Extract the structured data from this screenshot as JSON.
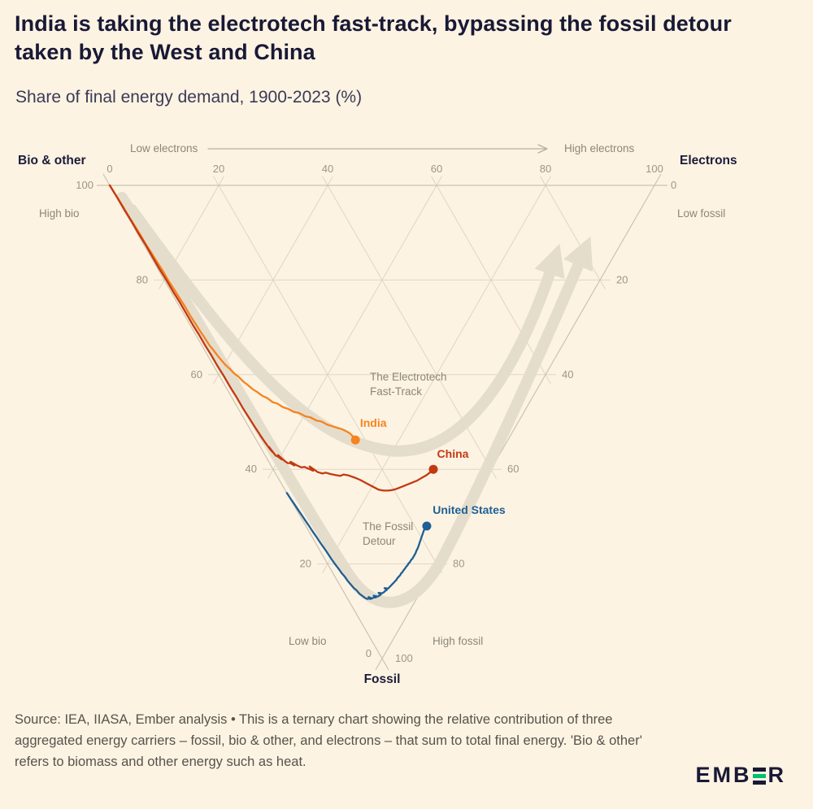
{
  "page": {
    "title": "India is taking the electrotech fast-track, bypassing the fossil detour taken by the West and China",
    "subtitle": "Share of final energy demand, 1900-2023 (%)",
    "source_note": "Source: IEA, IIASA, Ember analysis • This is a ternary chart showing the relative contribution of three aggregated energy carriers – fossil, bio & other, and electrons – that sum to total final energy. 'Bio & other' refers to biomass and other energy such as heat.",
    "logo": {
      "text_before": "EMB",
      "text_after": "R",
      "accent_green": "#00BF6E"
    },
    "colors": {
      "background": "#FDF3E3",
      "title": "#191936",
      "source_text": "#56534B"
    }
  },
  "chart_data": {
    "type": "line",
    "subtype": "ternary-trajectory",
    "unit": "%",
    "period": "1900-2023",
    "point_format": "[electrons, bio_other, fossil] as % of final energy demand, ordered 1900 to 2023",
    "axes": {
      "top": {
        "name": "Electrons",
        "direction_low": "Low electrons",
        "direction_high": "High electrons",
        "ticks": [
          0,
          20,
          40,
          60,
          80,
          100
        ]
      },
      "left": {
        "name": "Bio & other",
        "direction_high": "High bio",
        "direction_low": "Low bio",
        "ticks": [
          100,
          80,
          60,
          40,
          20,
          0
        ]
      },
      "right": {
        "name": "Fossil",
        "direction_low": "Low fossil",
        "direction_high": "High fossil",
        "ticks": [
          0,
          20,
          40,
          60,
          80,
          100
        ]
      }
    },
    "grid": {
      "show": true,
      "interval": 20
    },
    "annotations": [
      {
        "id": "fast-track",
        "lines": [
          "The Electrotech",
          "Fast-Track"
        ]
      },
      {
        "id": "fossil-detour",
        "lines": [
          "The Fossil",
          "Detour"
        ]
      }
    ],
    "series": [
      {
        "name": "India",
        "color": "#F5831F",
        "label_offset": [
          22,
          -16
        ],
        "points": [
          [
            0,
            100,
            0
          ],
          [
            0.1,
            97.5,
            2.4
          ],
          [
            0.2,
            95.1,
            4.7
          ],
          [
            0.2,
            93.4,
            6.4
          ],
          [
            0.3,
            91,
            8.7
          ],
          [
            0.4,
            89.4,
            10.2
          ],
          [
            0.4,
            87,
            12.6
          ],
          [
            0.5,
            85.5,
            14
          ],
          [
            0.6,
            83.1,
            16.3
          ],
          [
            0.7,
            81.6,
            17.7
          ],
          [
            0.7,
            79.2,
            20.1
          ],
          [
            0.8,
            77.7,
            21.5
          ],
          [
            0.9,
            75.3,
            23.8
          ],
          [
            1,
            73.8,
            25.2
          ],
          [
            1,
            71.4,
            27.6
          ],
          [
            1.1,
            69.9,
            29
          ],
          [
            1.2,
            67.8,
            31
          ],
          [
            1.3,
            66.8,
            31.9
          ],
          [
            1.4,
            64.8,
            33.8
          ],
          [
            1.6,
            63.8,
            34.6
          ],
          [
            1.8,
            62.2,
            36
          ],
          [
            2,
            61.2,
            36.8
          ],
          [
            2.3,
            59.7,
            38
          ],
          [
            2.6,
            58.7,
            38.7
          ],
          [
            3,
            57.2,
            39.8
          ],
          [
            3.4,
            56.2,
            40.4
          ],
          [
            3.8,
            54.7,
            41.5
          ],
          [
            4.2,
            53.7,
            42.1
          ],
          [
            4.7,
            52.2,
            43.1
          ],
          [
            5.2,
            51.2,
            43.6
          ],
          [
            5.8,
            49.7,
            44.5
          ],
          [
            6.4,
            48.7,
            44.9
          ],
          [
            7,
            47.2,
            45.8
          ],
          [
            7.7,
            46.2,
            46.1
          ],
          [
            8.4,
            44.7,
            46.9
          ],
          [
            9.1,
            43.7,
            47.2
          ],
          [
            9.9,
            42.2,
            47.9
          ],
          [
            10.7,
            41.2,
            48.1
          ],
          [
            11.5,
            39.7,
            48.8
          ],
          [
            12.3,
            38.7,
            49
          ],
          [
            13.1,
            37.2,
            49.7
          ],
          [
            13.9,
            36.2,
            49.9
          ],
          [
            14.7,
            34.7,
            50.6
          ],
          [
            15.4,
            33.7,
            50.9
          ],
          [
            16.1,
            32.7,
            51.2
          ],
          [
            16.8,
            31.7,
            51.5
          ],
          [
            17.4,
            30.7,
            51.9
          ],
          [
            17.9,
            29.7,
            52.4
          ],
          [
            18.1,
            28.8,
            53.1
          ],
          [
            18.2,
            28,
            53.8
          ]
        ]
      },
      {
        "name": "China",
        "color": "#C23A12",
        "label_offset": [
          24,
          -14
        ],
        "points": [
          [
            0,
            100,
            0
          ],
          [
            0.1,
            97,
            2.9
          ],
          [
            0.1,
            94.5,
            5.4
          ],
          [
            0.2,
            92,
            7.8
          ],
          [
            0.2,
            89.5,
            10.3
          ],
          [
            0.3,
            87,
            12.7
          ],
          [
            0.3,
            84.5,
            15.2
          ],
          [
            0.3,
            82,
            17.7
          ],
          [
            0.4,
            79.5,
            20.1
          ],
          [
            0.4,
            77,
            22.6
          ],
          [
            0.5,
            75,
            24.5
          ],
          [
            0.5,
            72.5,
            27
          ],
          [
            0.5,
            70,
            29.5
          ],
          [
            0.6,
            68,
            31.4
          ],
          [
            0.6,
            65.5,
            33.9
          ],
          [
            0.7,
            63.5,
            35.8
          ],
          [
            0.7,
            61,
            38.3
          ],
          [
            0.8,
            59,
            40.2
          ],
          [
            0.8,
            56.5,
            42.7
          ],
          [
            0.9,
            54.5,
            44.6
          ],
          [
            0.9,
            52,
            47.1
          ],
          [
            1,
            50,
            49
          ],
          [
            1.1,
            48,
            50.9
          ],
          [
            1.2,
            46.5,
            52.3
          ],
          [
            1.3,
            45,
            53.7
          ],
          [
            1.2,
            46,
            52.8
          ],
          [
            1.4,
            44,
            54.6
          ],
          [
            1.3,
            45,
            53.7
          ],
          [
            1.5,
            43,
            55.5
          ],
          [
            1.7,
            42,
            56.3
          ],
          [
            1.6,
            43.1,
            55.3
          ],
          [
            1.9,
            41,
            57.1
          ],
          [
            2.2,
            40.5,
            57.3
          ],
          [
            2.6,
            39.5,
            57.9
          ],
          [
            2.4,
            40.6,
            57
          ],
          [
            2.9,
            39,
            58.1
          ],
          [
            3.3,
            38,
            58.7
          ],
          [
            3.8,
            37.5,
            58.7
          ],
          [
            4.3,
            36.5,
            59.2
          ],
          [
            4,
            37.6,
            58.4
          ],
          [
            4.8,
            36,
            59.2
          ],
          [
            5.4,
            35,
            59.6
          ],
          [
            6,
            34.5,
            59.5
          ],
          [
            6.6,
            33.5,
            59.9
          ],
          [
            7.2,
            32.5,
            60.3
          ],
          [
            7,
            33.6,
            59.4
          ],
          [
            7.9,
            31.5,
            60.6
          ],
          [
            8.6,
            30.5,
            60.9
          ],
          [
            9.3,
            30,
            60.7
          ],
          [
            10,
            29,
            61
          ],
          [
            10.8,
            28,
            61.2
          ],
          [
            11.6,
            27,
            61.4
          ],
          [
            12.4,
            26.5,
            61.1
          ],
          [
            13.2,
            25.5,
            61.3
          ],
          [
            14,
            24.3,
            61.7
          ],
          [
            14.8,
            23,
            62.2
          ],
          [
            15.6,
            21.5,
            62.9
          ],
          [
            16.4,
            20,
            63.6
          ],
          [
            17.2,
            18.5,
            64.3
          ],
          [
            18,
            17.5,
            64.5
          ],
          [
            18.8,
            16.7,
            64.5
          ],
          [
            19.6,
            16,
            64.4
          ],
          [
            20.4,
            15.4,
            64.2
          ],
          [
            21.2,
            14.9,
            63.9
          ],
          [
            22,
            14.4,
            63.6
          ],
          [
            22.8,
            13.9,
            63.3
          ],
          [
            23.6,
            13.4,
            63
          ],
          [
            24.4,
            12.9,
            62.7
          ],
          [
            25.2,
            12.4,
            62.4
          ],
          [
            26,
            12,
            62
          ],
          [
            26.8,
            11.6,
            61.6
          ],
          [
            27.6,
            11.2,
            61.2
          ],
          [
            28.4,
            10.9,
            60.7
          ],
          [
            29,
            10.7,
            60.3
          ],
          [
            29.4,
            10.6,
            60
          ]
        ]
      },
      {
        "name": "United States",
        "color": "#1E5F94",
        "label_offset": [
          52,
          -15
        ],
        "points": [
          [
            0,
            35,
            65
          ],
          [
            0.1,
            33.5,
            66.4
          ],
          [
            0.2,
            32.5,
            67.3
          ],
          [
            0.3,
            31,
            68.7
          ],
          [
            0.4,
            30,
            69.6
          ],
          [
            0.5,
            28.5,
            71
          ],
          [
            0.6,
            27.5,
            71.9
          ],
          [
            0.7,
            26,
            73.3
          ],
          [
            0.8,
            25,
            74.2
          ],
          [
            0.9,
            23.5,
            75.6
          ],
          [
            1,
            22.5,
            76.5
          ],
          [
            1.1,
            21.5,
            77.4
          ],
          [
            1.2,
            20,
            78.8
          ],
          [
            1.3,
            19,
            79.7
          ],
          [
            1.5,
            17.5,
            81
          ],
          [
            1.6,
            16.5,
            81.9
          ],
          [
            1.8,
            15.5,
            82.7
          ],
          [
            1.9,
            14.5,
            83.6
          ],
          [
            2.1,
            13.5,
            84.4
          ],
          [
            2.3,
            12.5,
            85.2
          ],
          [
            2.5,
            12,
            85.5
          ],
          [
            2.7,
            11,
            86.3
          ],
          [
            2.9,
            10.5,
            86.6
          ],
          [
            3.1,
            10,
            86.9
          ],
          [
            3.3,
            9.5,
            87.2
          ],
          [
            3.6,
            9,
            87.4
          ],
          [
            3.9,
            8.8,
            87.3
          ],
          [
            4.2,
            8.4,
            87.4
          ],
          [
            4,
            9,
            87
          ],
          [
            4.5,
            8.2,
            87.3
          ],
          [
            4.9,
            8,
            87.1
          ],
          [
            5.3,
            7.6,
            87.1
          ],
          [
            5.1,
            8.2,
            86.7
          ],
          [
            5.7,
            7.4,
            86.9
          ],
          [
            6.1,
            7.2,
            86.7
          ],
          [
            6.5,
            7,
            86.5
          ],
          [
            6.3,
            7.6,
            86.1
          ],
          [
            6.9,
            6.9,
            86.2
          ],
          [
            7.3,
            6.7,
            86
          ],
          [
            7.7,
            6.6,
            85.7
          ],
          [
            8.1,
            6.4,
            85.5
          ],
          [
            7.9,
            7,
            85.1
          ],
          [
            8.5,
            6.3,
            85.2
          ],
          [
            8.9,
            6.2,
            84.9
          ],
          [
            9.3,
            6.1,
            84.6
          ],
          [
            9.7,
            6,
            84.3
          ],
          [
            10.1,
            5.9,
            84
          ],
          [
            10.5,
            5.8,
            83.7
          ],
          [
            10.9,
            5.7,
            83.4
          ],
          [
            11.3,
            5.7,
            83
          ],
          [
            11.7,
            5.6,
            82.7
          ],
          [
            12.1,
            5.5,
            82.4
          ],
          [
            12.5,
            5.5,
            82
          ],
          [
            12.9,
            5.4,
            81.7
          ],
          [
            13.3,
            5.4,
            81.3
          ],
          [
            13.7,
            5.3,
            81
          ],
          [
            14.1,
            5.3,
            80.6
          ],
          [
            14.5,
            5.2,
            80.3
          ],
          [
            14.9,
            5.2,
            79.9
          ],
          [
            15.3,
            5.1,
            79.6
          ],
          [
            15.7,
            5.1,
            79.2
          ],
          [
            16.1,
            5,
            78.9
          ],
          [
            16.5,
            5,
            78.5
          ],
          [
            16.9,
            5,
            78.1
          ],
          [
            17.3,
            5,
            77.7
          ],
          [
            17.7,
            5.1,
            77.2
          ],
          [
            18.1,
            5.1,
            76.8
          ],
          [
            18.5,
            5.2,
            76.3
          ],
          [
            18.9,
            5.3,
            75.8
          ],
          [
            19.3,
            5.4,
            75.3
          ],
          [
            19.7,
            5.5,
            74.8
          ],
          [
            20.1,
            5.6,
            74.3
          ],
          [
            20.5,
            5.7,
            73.8
          ],
          [
            20.9,
            5.8,
            73.3
          ],
          [
            21.3,
            5.9,
            72.8
          ],
          [
            21.7,
            5.9,
            72.4
          ],
          [
            22,
            5.9,
            72.1
          ],
          [
            22.2,
            5.8,
            72
          ]
        ]
      }
    ]
  }
}
